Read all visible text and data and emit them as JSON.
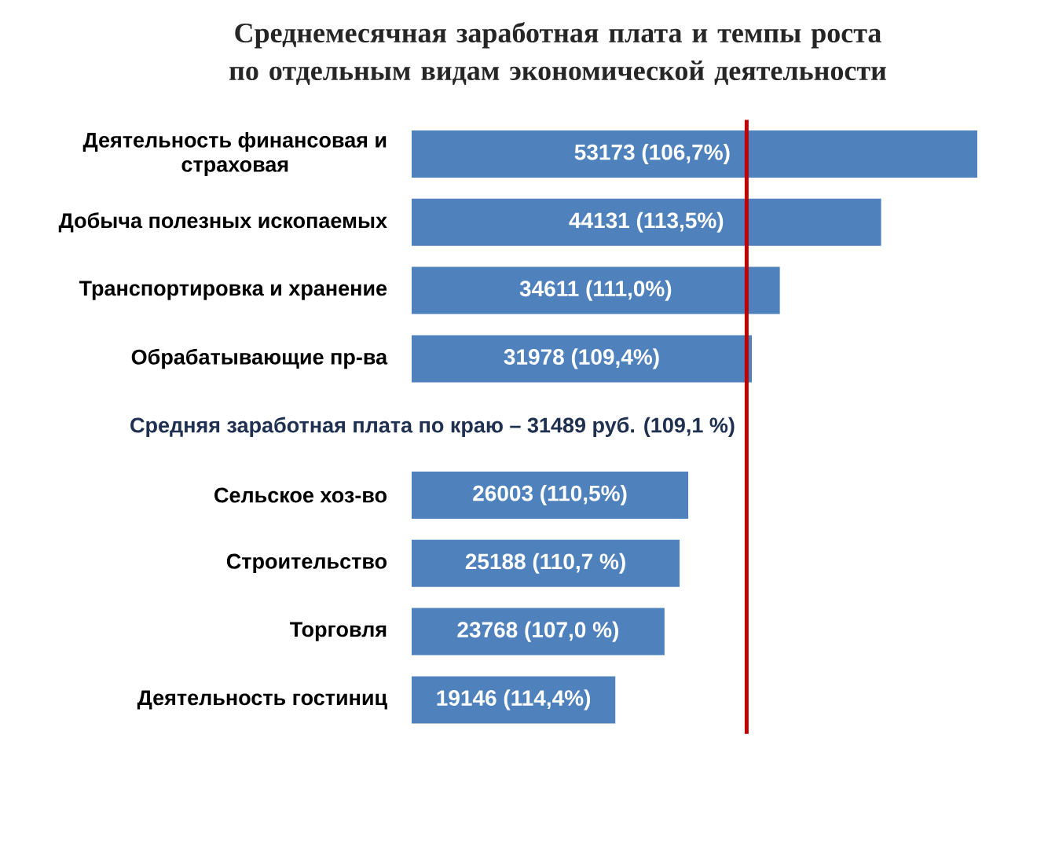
{
  "chart_data": {
    "type": "bar",
    "orientation": "horizontal",
    "title": "Среднемесячная заработная плата и темпы роста по отдельным видам экономической деятельности",
    "categories": [
      "Деятельность финансовая и страховая",
      "Добыча полезных ископаемых",
      "Транспортировка и хранение",
      "Обрабатывающие пр-ва",
      "Сельское хоз-во",
      "Строительство",
      "Торговля",
      "Деятельность гостиниц"
    ],
    "values": [
      53173,
      44131,
      34611,
      31978,
      26003,
      25188,
      23768,
      19146
    ],
    "value_labels": [
      "53173 (106,7%)",
      "44131 (113,5%)",
      "34611 (111,0%)",
      "31978 (109,4%)",
      "26003 (110,5%)",
      "25188 (110,7 %)",
      "23768 (107,0 %)",
      "19146 (114,4%)"
    ],
    "color": "#4f81bd",
    "ref_lines": [
      {
        "axis": "x",
        "value": 31489,
        "label": "Средняя заработная плата по краю – 31489 руб. (109,1 %)",
        "color": "#c00000"
      }
    ],
    "tick_labels": "y"
  }
}
